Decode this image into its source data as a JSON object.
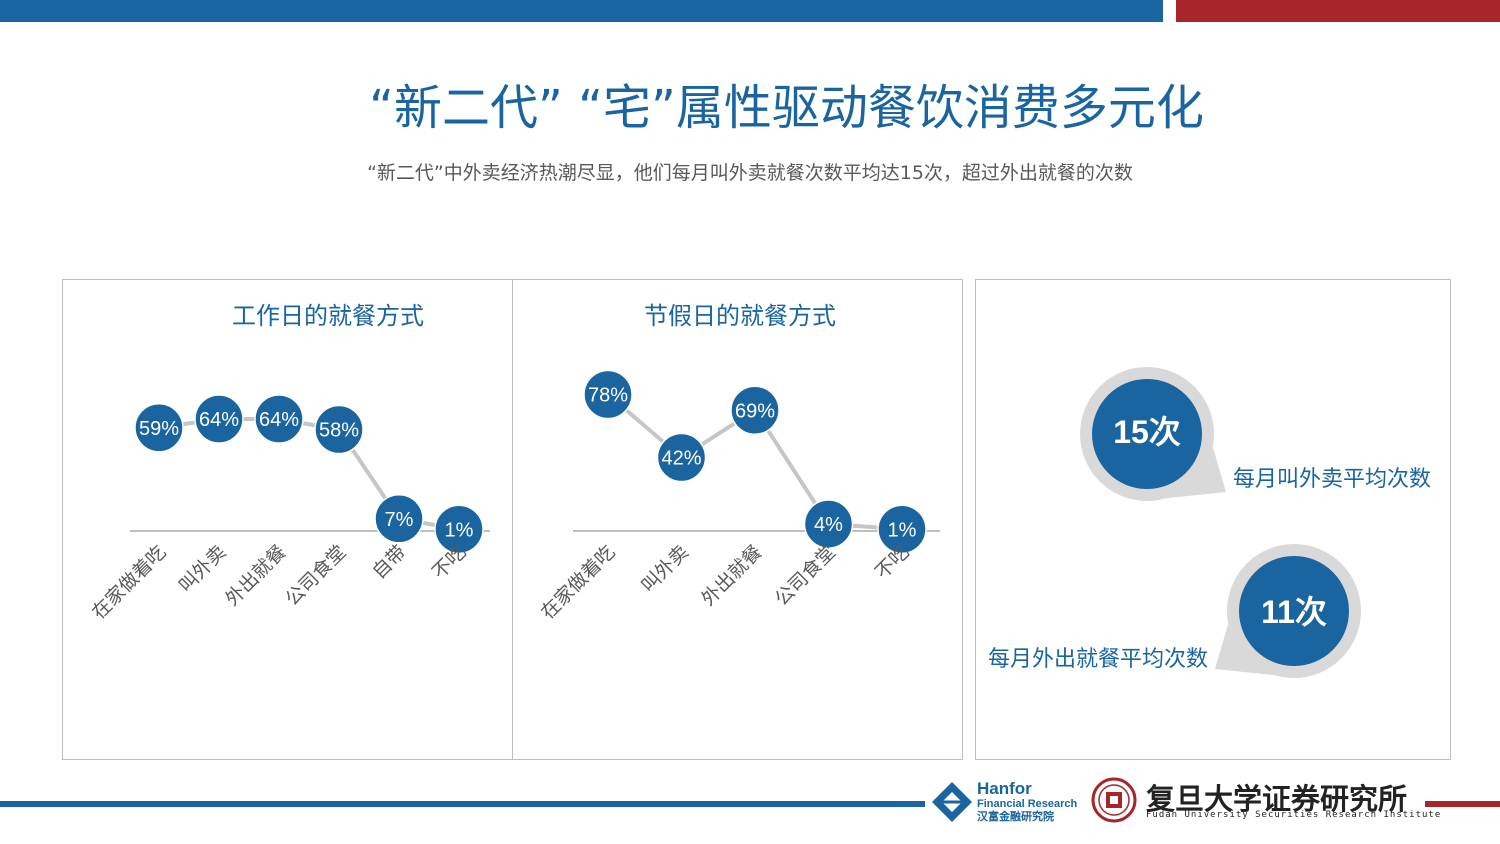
{
  "slide": {
    "title": "“新二代”  “宅”属性驱动餐饮消费多元化",
    "subtitle": "“新二代”中外卖经济热潮尽显，他们每月叫外卖就餐次数平均达15次，超过外出就餐的次数"
  },
  "colors": {
    "accent_blue": "#1a64a0",
    "accent_red": "#a6262c",
    "line_gray": "#c6c6c6",
    "ring_gray": "#d9d9d9"
  },
  "chart_data": [
    {
      "type": "line",
      "title": "工作日的就餐方式",
      "categories": [
        "在家做着吃",
        "叫外卖",
        "外出就餐",
        "公司食堂",
        "自带",
        "不吃"
      ],
      "values": [
        59,
        64,
        64,
        58,
        7,
        1
      ],
      "value_labels": [
        "59%",
        "64%",
        "64%",
        "58%",
        "7%",
        "1%"
      ],
      "unit": "%",
      "ylim": [
        0,
        100
      ]
    },
    {
      "type": "line",
      "title": "节假日的就餐方式",
      "categories": [
        "在家做着吃",
        "叫外卖",
        "外出就餐",
        "公司食堂",
        "不吃"
      ],
      "values": [
        78,
        42,
        69,
        4,
        1
      ],
      "value_labels": [
        "78%",
        "42%",
        "69%",
        "4%",
        "1%"
      ],
      "unit": "%",
      "ylim": [
        0,
        100
      ]
    }
  ],
  "stats": [
    {
      "value": "15次",
      "label": "每月叫外卖平均次数"
    },
    {
      "value": "11次",
      "label": "每月外出就餐平均次数"
    }
  ],
  "footer": {
    "hanfor_name": "Hanfor",
    "hanfor_sub": "Financial Research",
    "hanfor_cn": "汉富金融研究院",
    "fudan_cn": "复旦大学证券研究所",
    "fudan_en": "Fudan University Securities Research Institute"
  }
}
